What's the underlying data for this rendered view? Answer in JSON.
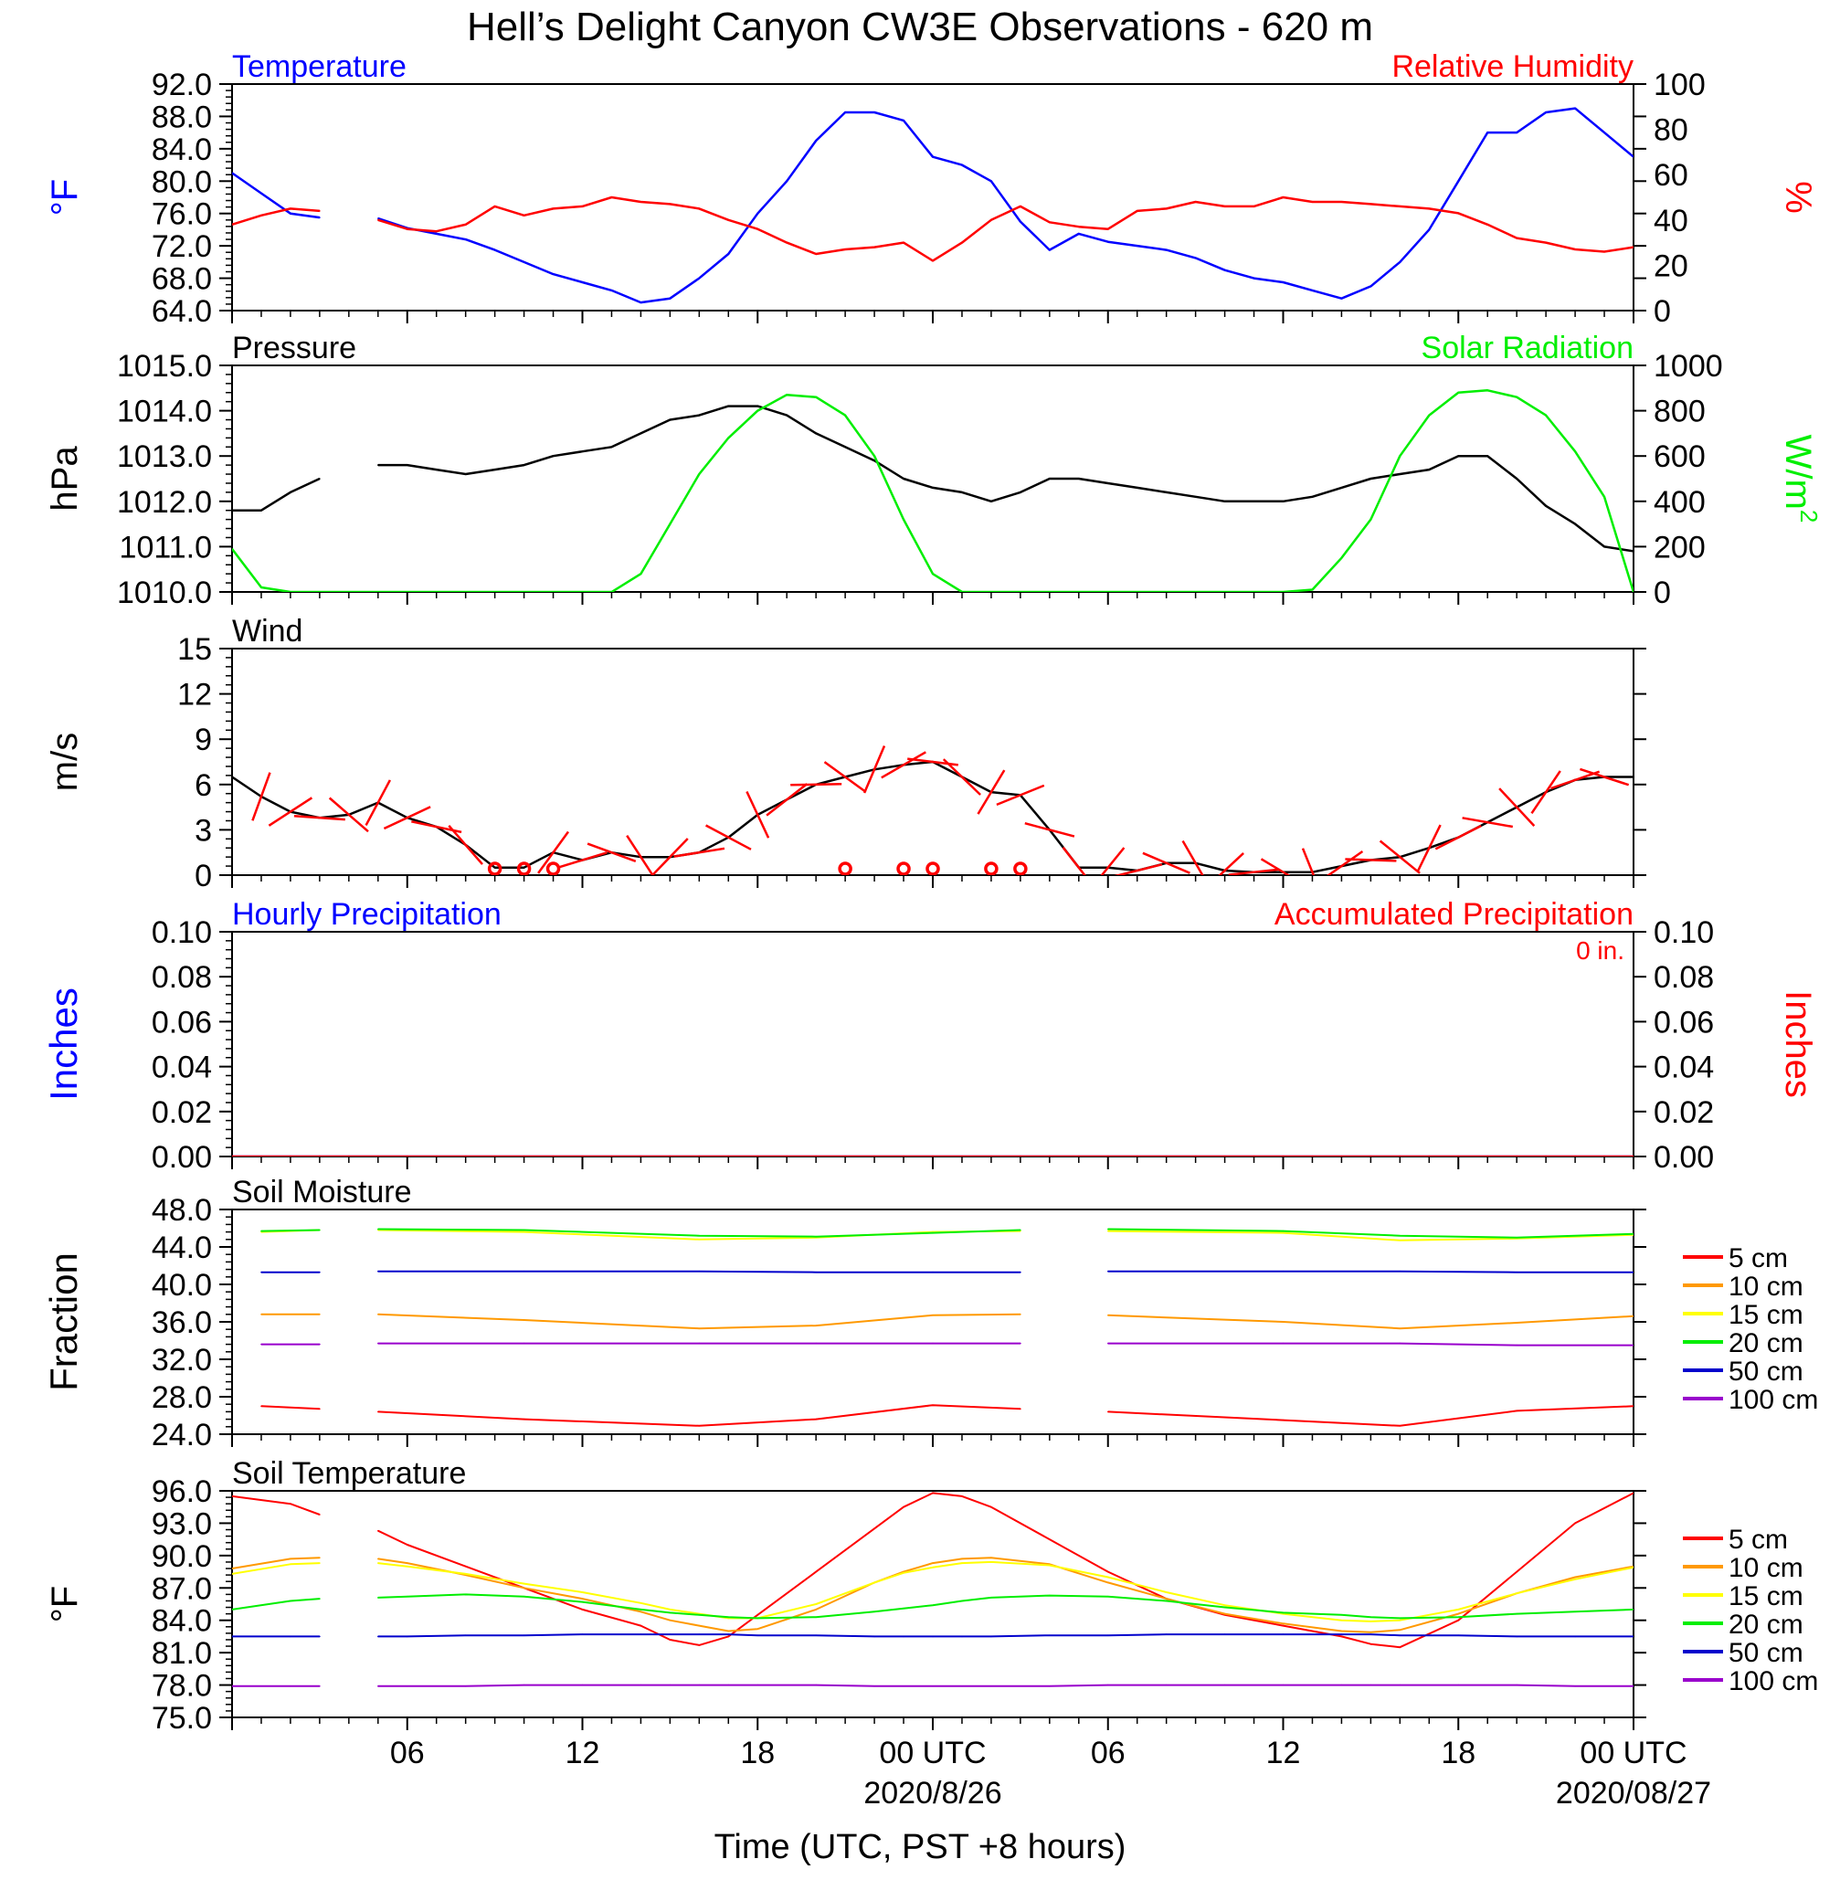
{
  "page_title": "Hell’s Delight Canyon CW3E Observations - 620 m",
  "x_axis": {
    "label": "Time (UTC, PST +8 hours)",
    "ticks": [
      "06",
      "12",
      "18",
      "00 UTC",
      "06",
      "12",
      "18",
      "00 UTC"
    ],
    "date_labels": [
      "2020/8/26",
      "2020/08/27"
    ]
  },
  "chart_data": [
    {
      "id": "temp_rh",
      "type": "line",
      "title_left": "Temperature",
      "title_right": "Relative Humidity",
      "ylabel_left": "°F",
      "ylabel_right": "%",
      "ylim_left": [
        64,
        92
      ],
      "ylim_right": [
        0,
        100
      ],
      "yticks_left": [
        "92.0",
        "88.0",
        "84.0",
        "80.0",
        "76.0",
        "72.0",
        "68.0",
        "64.0"
      ],
      "yticks_right": [
        "100",
        "80",
        "60",
        "40",
        "20",
        "0"
      ],
      "x_hours": [
        0,
        1,
        2,
        3,
        4,
        5,
        6,
        7,
        8,
        9,
        10,
        11,
        12,
        13,
        14,
        15,
        16,
        17,
        18,
        19,
        20,
        21,
        22,
        23,
        24,
        25,
        26,
        27,
        28,
        29,
        30,
        31,
        32,
        33,
        34,
        35,
        36,
        37,
        38,
        39,
        40,
        41,
        42,
        43,
        44,
        45,
        46,
        47,
        48
      ],
      "series": [
        {
          "name": "Temperature",
          "axis": "left",
          "color": "#0000ff",
          "values": [
            81,
            78.5,
            76,
            75.5,
            null,
            75.4,
            74.2,
            73.5,
            72.8,
            71.5,
            70,
            68.5,
            67.5,
            66.5,
            65,
            65.5,
            68,
            71,
            76,
            80,
            85,
            88.5,
            88.5,
            87.5,
            83,
            82,
            80,
            75,
            71.5,
            73.5,
            72.5,
            72,
            71.5,
            70.5,
            69,
            68,
            67.5,
            66.5,
            65.5,
            67,
            70,
            74,
            80,
            86,
            86,
            88.5,
            89,
            86,
            83
          ]
        },
        {
          "name": "Relative Humidity",
          "axis": "right",
          "color": "#ff0000",
          "values": [
            38,
            42,
            45,
            44,
            null,
            40,
            36,
            35,
            38,
            46,
            42,
            45,
            46,
            50,
            48,
            47,
            45,
            40,
            36,
            30,
            25,
            27,
            28,
            30,
            22,
            30,
            40,
            46,
            39,
            37,
            36,
            44,
            45,
            48,
            46,
            46,
            50,
            48,
            48,
            47,
            46,
            45,
            43,
            38,
            32,
            30,
            27,
            26,
            28
          ]
        }
      ]
    },
    {
      "id": "pressure_solar",
      "type": "line",
      "title_left": "Pressure",
      "title_right": "Solar Radiation",
      "ylabel_left": "hPa",
      "ylabel_right": "W/m",
      "ylabel_right_sup": "2",
      "ylim_left": [
        1010,
        1015
      ],
      "ylim_right": [
        0,
        1000
      ],
      "yticks_left": [
        "1015.0",
        "1014.0",
        "1013.0",
        "1012.0",
        "1011.0",
        "1010.0"
      ],
      "yticks_right": [
        "1000",
        "800",
        "600",
        "400",
        "200",
        "0"
      ],
      "x_hours": [
        0,
        1,
        2,
        3,
        4,
        5,
        6,
        7,
        8,
        9,
        10,
        11,
        12,
        13,
        14,
        15,
        16,
        17,
        18,
        19,
        20,
        21,
        22,
        23,
        24,
        25,
        26,
        27,
        28,
        29,
        30,
        31,
        32,
        33,
        34,
        35,
        36,
        37,
        38,
        39,
        40,
        41,
        42,
        43,
        44,
        45,
        46,
        47,
        48
      ],
      "series": [
        {
          "name": "Pressure",
          "axis": "left",
          "color": "#000000",
          "values": [
            1011.8,
            1011.8,
            1012.2,
            1012.5,
            null,
            1012.8,
            1012.8,
            1012.7,
            1012.6,
            1012.7,
            1012.8,
            1013,
            1013.1,
            1013.2,
            1013.5,
            1013.8,
            1013.9,
            1014.1,
            1014.1,
            1013.9,
            1013.5,
            1013.2,
            1012.9,
            1012.5,
            1012.3,
            1012.2,
            1012,
            1012.2,
            1012.5,
            1012.5,
            1012.4,
            1012.3,
            1012.2,
            1012.1,
            1012,
            1012,
            1012,
            1012.1,
            1012.3,
            1012.5,
            1012.6,
            1012.7,
            1013,
            1013,
            1012.5,
            1011.9,
            1011.5,
            1011,
            1010.9
          ]
        },
        {
          "name": "Solar Radiation",
          "axis": "right",
          "color": "#00ee00",
          "values": [
            190,
            20,
            0,
            0,
            0,
            0,
            0,
            0,
            0,
            0,
            0,
            0,
            0,
            0,
            80,
            300,
            520,
            680,
            800,
            870,
            860,
            780,
            600,
            320,
            80,
            0,
            0,
            0,
            0,
            0,
            0,
            0,
            0,
            0,
            0,
            0,
            0,
            10,
            150,
            320,
            600,
            780,
            880,
            890,
            860,
            780,
            620,
            420,
            0
          ]
        }
      ]
    },
    {
      "id": "wind",
      "type": "line",
      "title_left": "Wind",
      "ylabel_left": "m/s",
      "ylim_left": [
        0,
        15
      ],
      "yticks_left": [
        "15",
        "12",
        "9",
        "6",
        "3",
        "0"
      ],
      "x_hours": [
        0,
        1,
        2,
        3,
        4,
        5,
        6,
        7,
        8,
        9,
        10,
        11,
        12,
        13,
        14,
        15,
        16,
        17,
        18,
        19,
        20,
        21,
        22,
        23,
        24,
        25,
        26,
        27,
        28,
        29,
        30,
        31,
        32,
        33,
        34,
        35,
        36,
        37,
        38,
        39,
        40,
        41,
        42,
        43,
        44,
        45,
        46,
        47,
        48
      ],
      "series": [
        {
          "name": "Wind speed",
          "axis": "left",
          "color": "#000000",
          "values": [
            6.5,
            5.2,
            4.2,
            3.8,
            4,
            4.8,
            3.8,
            3.2,
            2,
            0.5,
            0.5,
            1.5,
            1,
            1.5,
            1.2,
            1.2,
            1.5,
            2.5,
            4,
            5,
            6,
            6.5,
            7,
            7.3,
            7.5,
            6.5,
            5.5,
            5.3,
            3,
            0.5,
            0.5,
            0.3,
            0.8,
            0.8,
            0.3,
            0.2,
            0.2,
            0.2,
            0.6,
            1,
            1.2,
            1.8,
            2.5,
            3.5,
            4.5,
            5.5,
            6.3,
            6.5,
            6.5
          ]
        }
      ],
      "calm_marks": [
        9,
        10,
        11,
        21,
        23,
        24,
        26,
        27
      ],
      "barb_hours": [
        1,
        2,
        3,
        4,
        5,
        6,
        7,
        8,
        11,
        12,
        13,
        14,
        15,
        16,
        17,
        18,
        19,
        20,
        21,
        22,
        23,
        24,
        25,
        26,
        27,
        28,
        29,
        30,
        31,
        32,
        33,
        34,
        35,
        36,
        37,
        38,
        39,
        40,
        41,
        42,
        43,
        44,
        45,
        46,
        47
      ]
    },
    {
      "id": "precip",
      "type": "line",
      "title_left": "Hourly Precipitation",
      "title_right": "Accumulated Precipitation",
      "annotation": "0 in.",
      "ylabel_left": "Inches",
      "ylabel_right": "Inches",
      "ylim_left": [
        0,
        0.1
      ],
      "ylim_right": [
        0,
        0.1
      ],
      "yticks_left": [
        "0.10",
        "0.08",
        "0.06",
        "0.04",
        "0.02",
        "0.00"
      ],
      "yticks_right": [
        "0.10",
        "0.08",
        "0.06",
        "0.04",
        "0.02",
        "0.00"
      ],
      "x_hours": [
        0,
        48
      ],
      "series": [
        {
          "name": "Hourly Precipitation",
          "axis": "left",
          "color": "#0000ff",
          "values": [
            0,
            0
          ]
        },
        {
          "name": "Accumulated Precipitation",
          "axis": "left",
          "color": "#ff0000",
          "values": [
            0,
            0
          ]
        }
      ]
    },
    {
      "id": "soil_moisture",
      "type": "line",
      "title_left": "Soil Moisture",
      "ylabel_left": "Fraction",
      "ylim_left": [
        24,
        48
      ],
      "yticks_left": [
        "48.0",
        "44.0",
        "40.0",
        "36.0",
        "32.0",
        "28.0",
        "24.0"
      ],
      "legend": [
        "5 cm",
        "10 cm",
        "15 cm",
        "20 cm",
        "50 cm",
        "100 cm"
      ],
      "x_hours": [
        1,
        3,
        4,
        5,
        10,
        16,
        20,
        24,
        27,
        28,
        30,
        36,
        40,
        44,
        48
      ],
      "series": [
        {
          "name": "5 cm",
          "color": "#ff0000",
          "values": [
            27,
            26.7,
            null,
            26.4,
            25.6,
            24.9,
            25.6,
            27.1,
            26.7,
            null,
            26.4,
            25.5,
            24.9,
            26.5,
            27
          ]
        },
        {
          "name": "10 cm",
          "color": "#ff9900",
          "values": [
            36.8,
            36.8,
            null,
            36.8,
            36.2,
            35.3,
            35.6,
            36.7,
            36.8,
            null,
            36.7,
            36,
            35.3,
            35.9,
            36.6
          ]
        },
        {
          "name": "15 cm",
          "color": "#ffff00",
          "values": [
            45.6,
            45.8,
            null,
            45.8,
            45.6,
            44.8,
            45,
            45.6,
            45.7,
            null,
            45.7,
            45.5,
            44.7,
            44.9,
            45.3
          ]
        },
        {
          "name": "20 cm",
          "color": "#00ee00",
          "values": [
            45.7,
            45.8,
            null,
            45.9,
            45.8,
            45.2,
            45.1,
            45.5,
            45.8,
            null,
            45.9,
            45.7,
            45.2,
            45,
            45.4
          ]
        },
        {
          "name": "50 cm",
          "color": "#0000cc",
          "values": [
            41.3,
            41.3,
            null,
            41.4,
            41.4,
            41.4,
            41.3,
            41.3,
            41.3,
            null,
            41.4,
            41.4,
            41.4,
            41.3,
            41.3
          ]
        },
        {
          "name": "100 cm",
          "color": "#9900cc",
          "values": [
            33.6,
            33.6,
            null,
            33.7,
            33.7,
            33.7,
            33.7,
            33.7,
            33.7,
            null,
            33.7,
            33.7,
            33.7,
            33.5,
            33.5
          ]
        }
      ]
    },
    {
      "id": "soil_temp",
      "type": "line",
      "title_left": "Soil Temperature",
      "ylabel_left": "°F",
      "ylim_left": [
        75,
        96
      ],
      "yticks_left": [
        "96.0",
        "93.0",
        "90.0",
        "87.0",
        "84.0",
        "81.0",
        "78.0",
        "75.0"
      ],
      "legend": [
        "5 cm",
        "10 cm",
        "15 cm",
        "20 cm",
        "50 cm",
        "100 cm"
      ],
      "x_hours": [
        0,
        2,
        3,
        4,
        5,
        6,
        8,
        10,
        12,
        14,
        15,
        16,
        17,
        18,
        20,
        22,
        23,
        24,
        25,
        26,
        28,
        30,
        32,
        34,
        36,
        38,
        39,
        40,
        42,
        44,
        46,
        48
      ],
      "series": [
        {
          "name": "5 cm",
          "color": "#ff0000",
          "values": [
            95.5,
            94.8,
            93.8,
            null,
            92.3,
            91,
            89,
            87,
            85,
            83.5,
            82.2,
            81.7,
            82.5,
            84.5,
            88.5,
            92.5,
            94.5,
            95.8,
            95.5,
            94.5,
            91.5,
            88.5,
            86,
            84.5,
            83.5,
            82.5,
            81.8,
            81.5,
            84,
            88.5,
            93,
            95.8
          ]
        },
        {
          "name": "10 cm",
          "color": "#ff9900",
          "values": [
            88.8,
            89.7,
            89.8,
            null,
            89.7,
            89.3,
            88.2,
            87,
            86,
            84.8,
            84,
            83.5,
            83,
            83.2,
            85,
            87.5,
            88.5,
            89.3,
            89.7,
            89.8,
            89.2,
            87.5,
            86,
            84.6,
            83.7,
            83,
            82.9,
            83.1,
            84.6,
            86.5,
            88,
            89
          ]
        },
        {
          "name": "15 cm",
          "color": "#ffff00",
          "values": [
            88.3,
            89.2,
            89.3,
            null,
            89.3,
            89,
            88.3,
            87.4,
            86.6,
            85.6,
            85,
            84.6,
            84.2,
            84.2,
            85.5,
            87.5,
            88.4,
            88.9,
            89.3,
            89.4,
            89.1,
            88,
            86.6,
            85.4,
            84.6,
            84,
            83.9,
            84,
            85,
            86.5,
            87.8,
            88.9
          ]
        },
        {
          "name": "20 cm",
          "color": "#00ee00",
          "values": [
            85,
            85.8,
            86,
            null,
            86.1,
            86.2,
            86.4,
            86.2,
            85.7,
            85,
            84.7,
            84.5,
            84.3,
            84.2,
            84.3,
            84.8,
            85.1,
            85.4,
            85.8,
            86.1,
            86.3,
            86.2,
            85.8,
            85.2,
            84.7,
            84.5,
            84.3,
            84.2,
            84.3,
            84.6,
            84.8,
            85
          ]
        },
        {
          "name": "50 cm",
          "color": "#0000cc",
          "values": [
            82.5,
            82.5,
            82.5,
            null,
            82.5,
            82.5,
            82.6,
            82.6,
            82.7,
            82.7,
            82.7,
            82.7,
            82.7,
            82.6,
            82.6,
            82.5,
            82.5,
            82.5,
            82.5,
            82.5,
            82.6,
            82.6,
            82.7,
            82.7,
            82.7,
            82.7,
            82.7,
            82.6,
            82.6,
            82.5,
            82.5,
            82.5
          ]
        },
        {
          "name": "100 cm",
          "color": "#9900cc",
          "values": [
            77.9,
            77.9,
            77.9,
            null,
            77.9,
            77.9,
            77.9,
            78,
            78,
            78,
            78,
            78,
            78,
            78,
            78,
            77.9,
            77.9,
            77.9,
            77.9,
            77.9,
            77.9,
            78,
            78,
            78,
            78,
            78,
            78,
            78,
            78,
            78,
            77.9,
            77.9
          ]
        }
      ]
    }
  ]
}
